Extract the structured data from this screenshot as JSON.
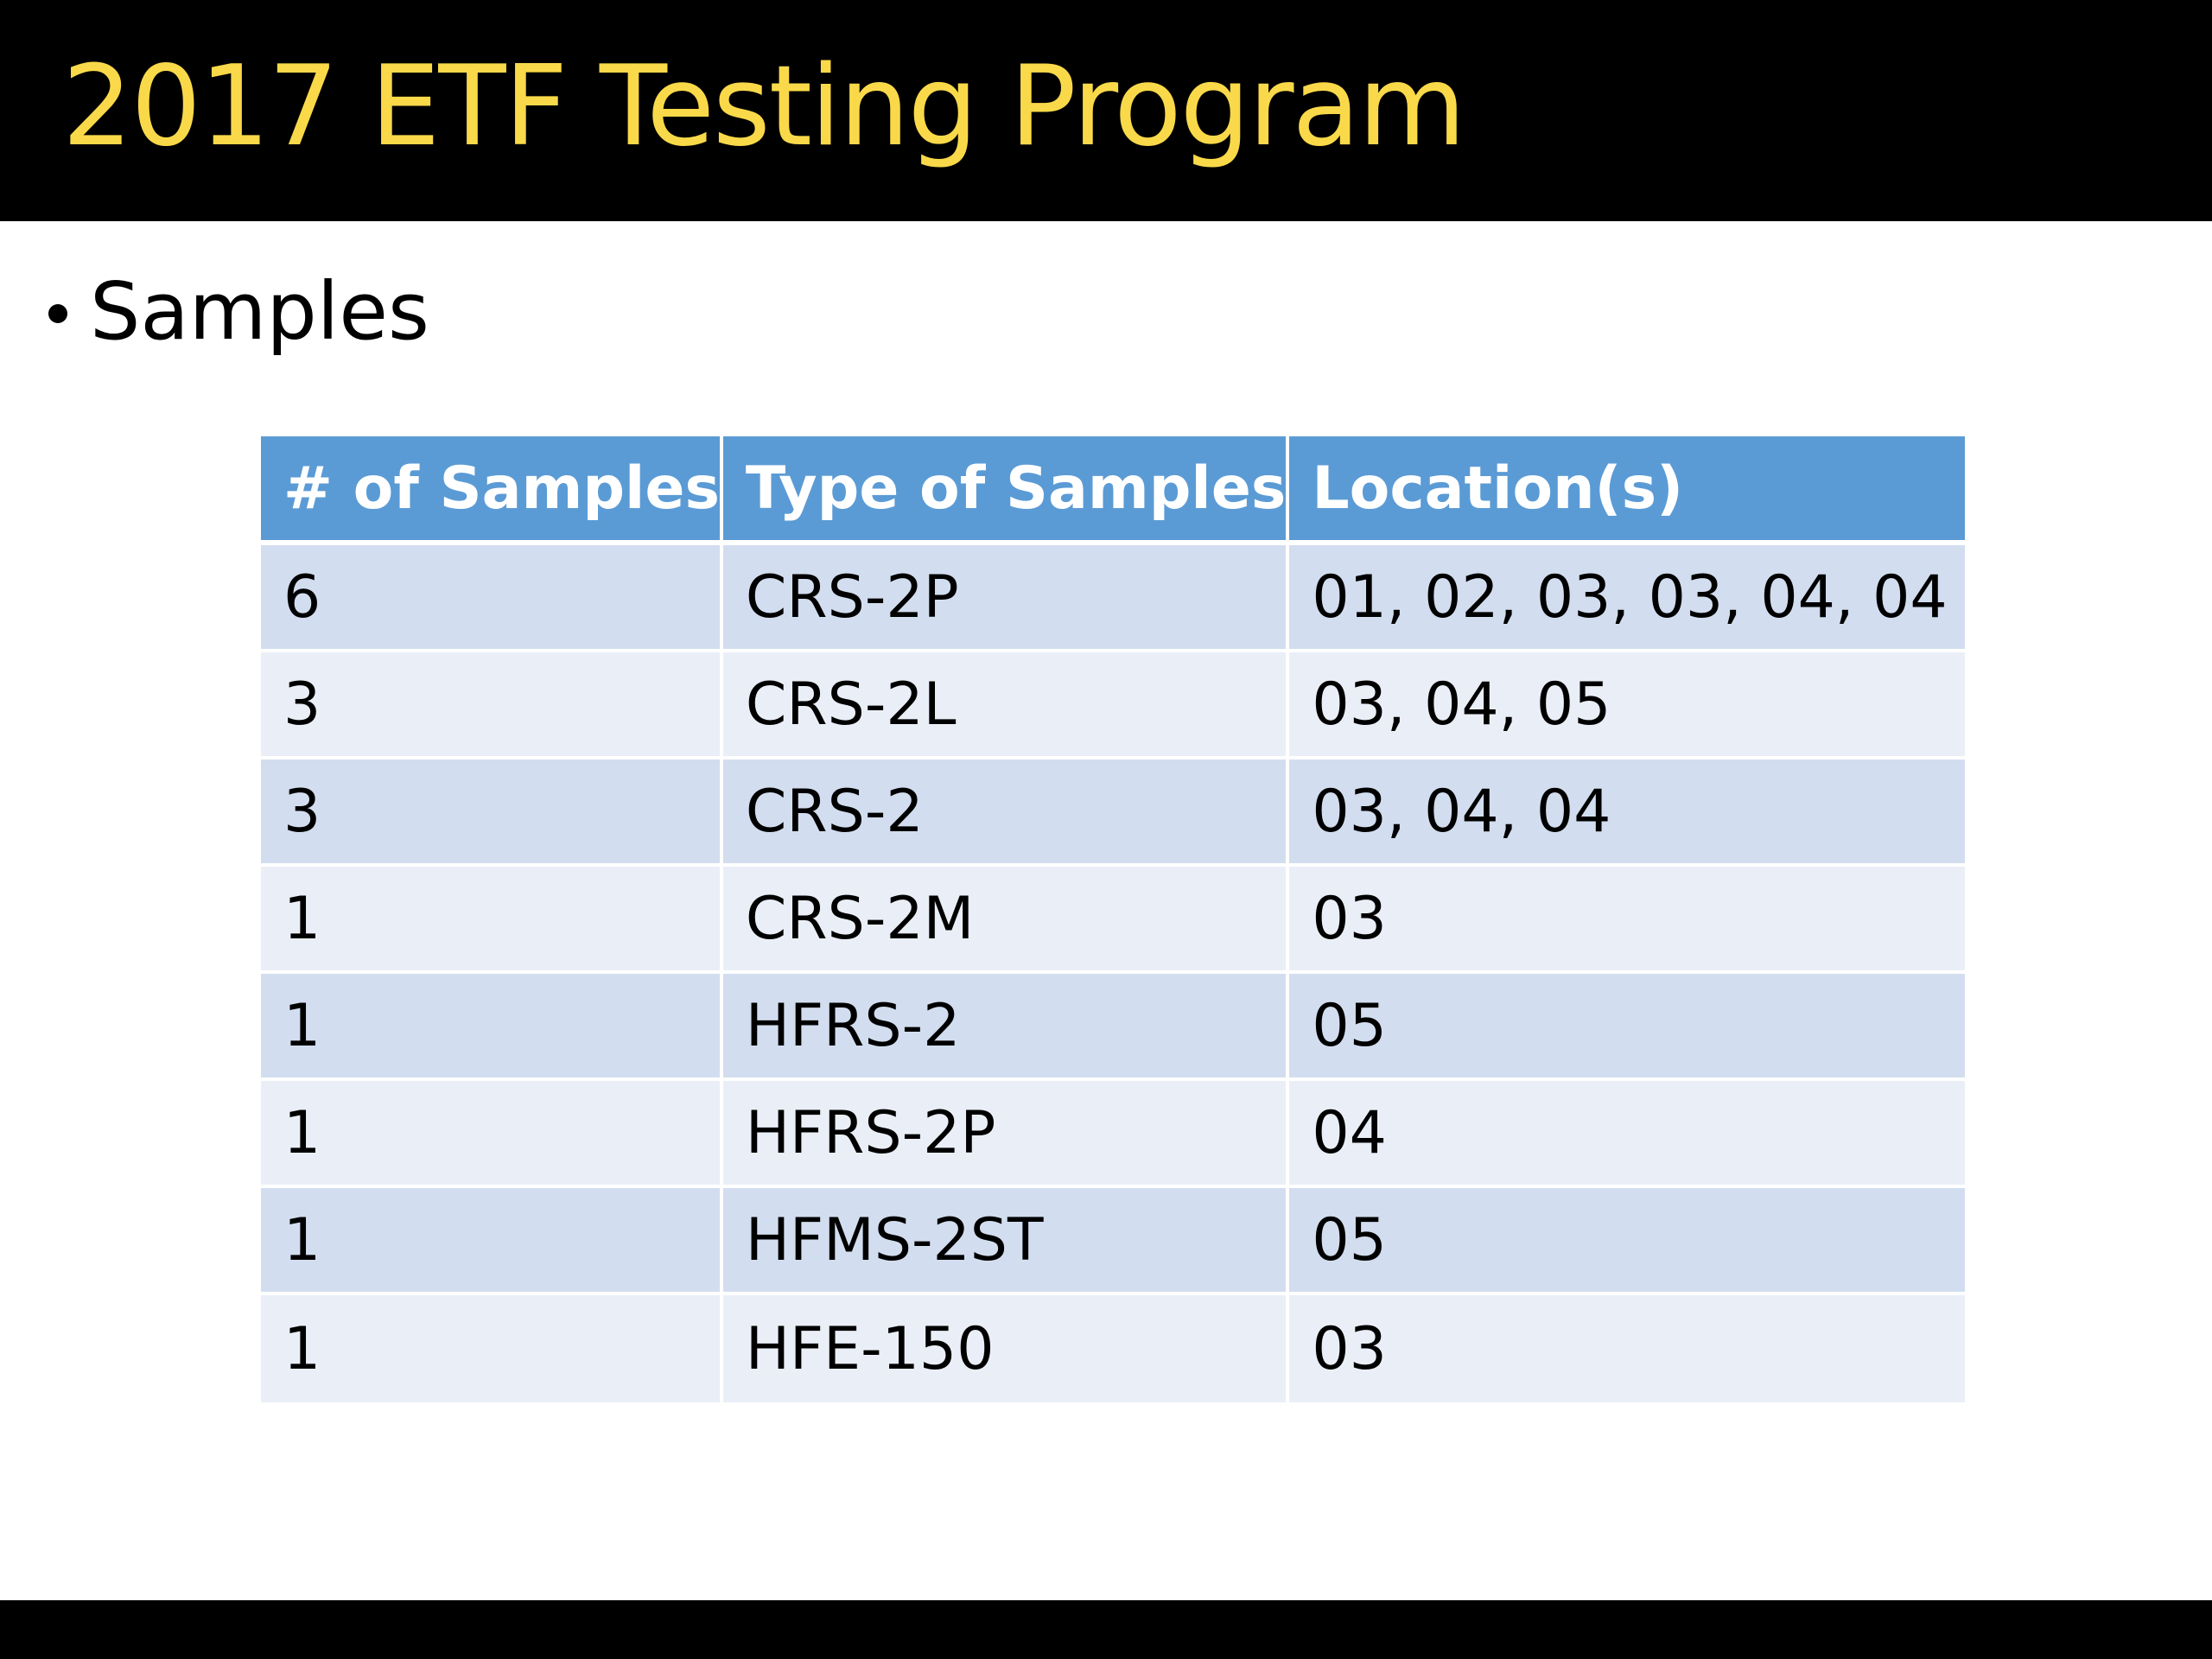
{
  "slide": {
    "title": "2017 ETF Testing Program",
    "bullet": "Samples"
  },
  "table": {
    "headers": [
      "# of Samples",
      "Type of Samples",
      "Location(s)"
    ],
    "rows": [
      [
        "6",
        "CRS-2P",
        "01, 02, 03, 03, 04, 04"
      ],
      [
        "3",
        "CRS-2L",
        "03, 04, 05"
      ],
      [
        "3",
        "CRS-2",
        "03, 04, 04"
      ],
      [
        "1",
        "CRS-2M",
        "03"
      ],
      [
        "1",
        "HFRS-2",
        "05"
      ],
      [
        "1",
        "HFRS-2P",
        "04"
      ],
      [
        "1",
        "HFMS-2ST",
        "05"
      ],
      [
        "1",
        "HFE-150",
        "03"
      ]
    ]
  },
  "colors": {
    "title_text": "#f9d949",
    "title_bar": "#000000",
    "header_fill": "#5b9bd5",
    "row_band_dark": "#d2deef",
    "row_band_light": "#eaeff7"
  }
}
